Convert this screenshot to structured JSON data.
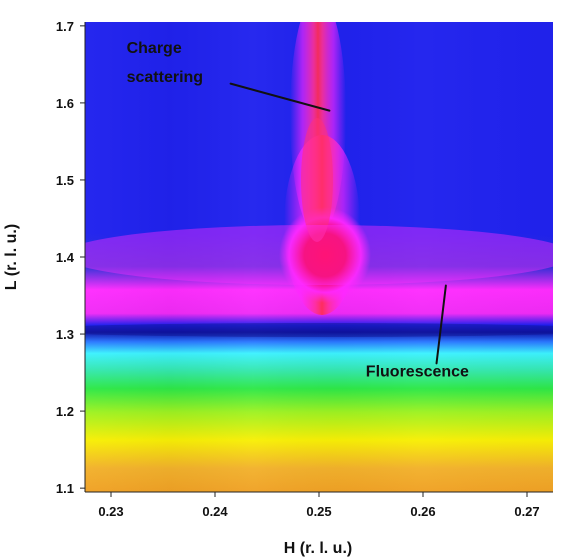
{
  "chart_data": {
    "type": "heatmap",
    "title": "",
    "xlabel": "H (r. l. u.)",
    "ylabel": "L (r. l. u.)",
    "xlim": [
      0.2275,
      0.2725
    ],
    "ylim": [
      1.095,
      1.705
    ],
    "x_ticks": [
      0.23,
      0.24,
      0.25,
      0.26,
      0.27
    ],
    "y_ticks": [
      1.1,
      1.2,
      1.3,
      1.4,
      1.5,
      1.6,
      1.7
    ],
    "x_tick_labels": [
      "0.23",
      "0.24",
      "0.25",
      "0.26",
      "0.27"
    ],
    "y_tick_labels": [
      "1.1",
      "1.2",
      "1.3",
      "1.4",
      "1.5",
      "1.6",
      "1.7"
    ],
    "colors": {
      "low_blue": "#1f20ea",
      "mid_cyan": "#34f2ff",
      "green": "#38e84a",
      "yellow": "#f8ef05",
      "orange": "#f2b12c",
      "magenta": "#ff26ff",
      "red": "#f0002a"
    },
    "features": [
      {
        "name": "charge-scattering-peak",
        "h_center": 0.251,
        "l_center": 1.405,
        "note": "vertical rod of high intensity"
      },
      {
        "name": "fluorescence-band",
        "l_min": 1.1,
        "l_max": 1.34,
        "note": "horizontal intensity gradient increasing toward lower L"
      }
    ],
    "annotations": [
      {
        "name": "charge-scattering-annotation",
        "text_lines": [
          "Charge",
          "scattering"
        ],
        "text_x": 0.2315,
        "text_y_top": 1.665,
        "line_from": [
          0.2415,
          1.625
        ],
        "line_to": [
          0.251,
          1.59
        ]
      },
      {
        "name": "fluorescence-annotation",
        "text_lines": [
          "Fluorescence"
        ],
        "text_x": 0.2545,
        "text_y_top": 1.245,
        "line_from": [
          0.2622,
          1.363
        ],
        "line_to": [
          0.2613,
          1.262
        ]
      }
    ],
    "grid": false,
    "legend": "none"
  }
}
